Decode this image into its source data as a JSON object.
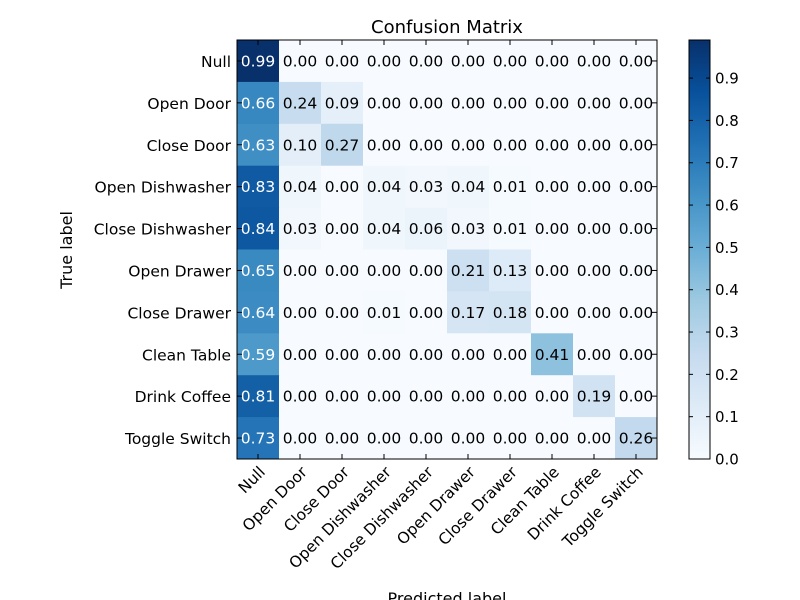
{
  "chart_data": {
    "type": "heatmap",
    "title": "Confusion Matrix",
    "xlabel": "Predicted label",
    "ylabel": "True label",
    "x_categories": [
      "Null",
      "Open Door",
      "Close Door",
      "Open Dishwasher",
      "Close Dishwasher",
      "Open Drawer",
      "Close Drawer",
      "Clean Table",
      "Drink Coffee",
      "Toggle Switch"
    ],
    "y_categories": [
      "Null",
      "Open Door",
      "Close Door",
      "Open Dishwasher",
      "Close Dishwasher",
      "Open Drawer",
      "Close Drawer",
      "Clean Table",
      "Drink Coffee",
      "Toggle Switch"
    ],
    "values": [
      [
        0.99,
        0.0,
        0.0,
        0.0,
        0.0,
        0.0,
        0.0,
        0.0,
        0.0,
        0.0
      ],
      [
        0.66,
        0.24,
        0.09,
        0.0,
        0.0,
        0.0,
        0.0,
        0.0,
        0.0,
        0.0
      ],
      [
        0.63,
        0.1,
        0.27,
        0.0,
        0.0,
        0.0,
        0.0,
        0.0,
        0.0,
        0.0
      ],
      [
        0.83,
        0.04,
        0.0,
        0.04,
        0.03,
        0.04,
        0.01,
        0.0,
        0.0,
        0.0
      ],
      [
        0.84,
        0.03,
        0.0,
        0.04,
        0.06,
        0.03,
        0.01,
        0.0,
        0.0,
        0.0
      ],
      [
        0.65,
        0.0,
        0.0,
        0.0,
        0.0,
        0.21,
        0.13,
        0.0,
        0.0,
        0.0
      ],
      [
        0.64,
        0.0,
        0.0,
        0.01,
        0.0,
        0.17,
        0.18,
        0.0,
        0.0,
        0.0
      ],
      [
        0.59,
        0.0,
        0.0,
        0.0,
        0.0,
        0.0,
        0.0,
        0.41,
        0.0,
        0.0
      ],
      [
        0.81,
        0.0,
        0.0,
        0.0,
        0.0,
        0.0,
        0.0,
        0.0,
        0.19,
        0.0
      ],
      [
        0.73,
        0.0,
        0.0,
        0.0,
        0.0,
        0.0,
        0.0,
        0.0,
        0.0,
        0.26
      ]
    ],
    "colormap": "Blues",
    "colorbar": {
      "range": [
        0.0,
        0.99
      ],
      "ticks": [
        "0.0",
        "0.1",
        "0.2",
        "0.3",
        "0.4",
        "0.5",
        "0.6",
        "0.7",
        "0.8",
        "0.9"
      ]
    },
    "value_format": "2 decimals",
    "text_color_dark_cells": "#ffffff",
    "text_color_light_cells": "#000000"
  }
}
